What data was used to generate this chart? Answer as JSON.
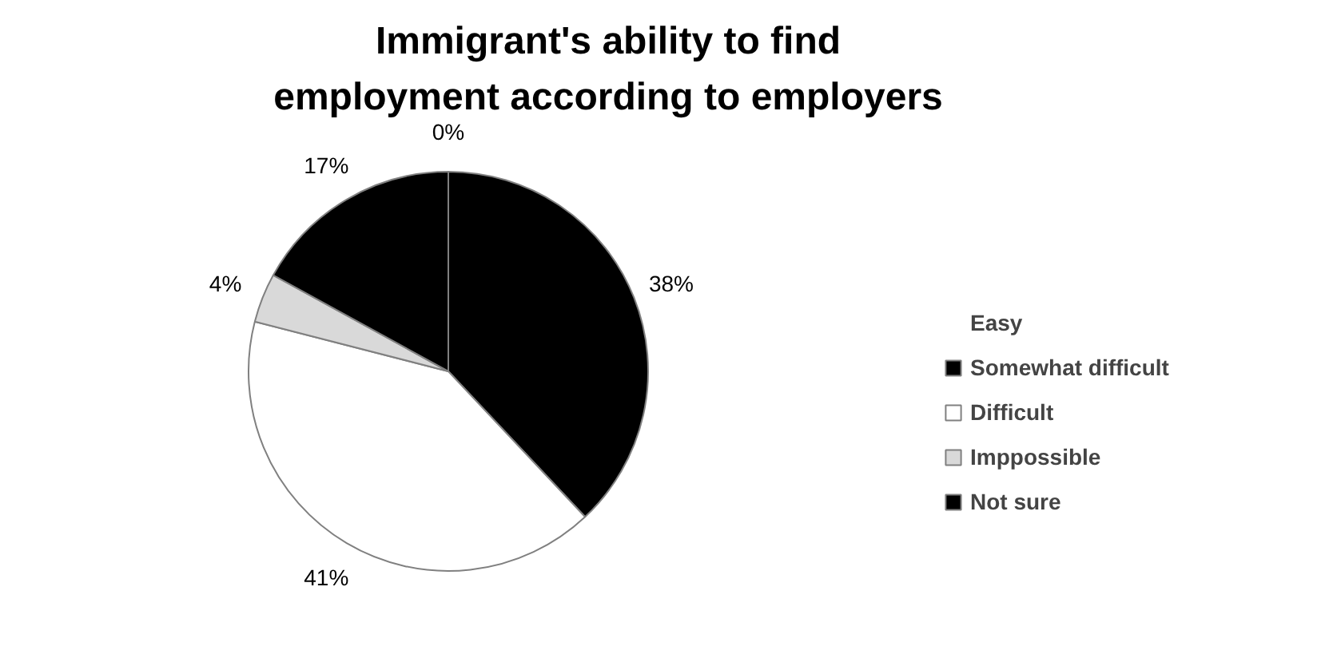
{
  "chart_data": {
    "type": "pie",
    "title": "Immigrant's ability to find employment according to employers",
    "categories": [
      "Easy",
      "Somewhat difficult",
      "Difficult",
      "Imppossible",
      "Not sure"
    ],
    "values": [
      0,
      38,
      41,
      4,
      17
    ],
    "value_labels": [
      "0%",
      "38%",
      "41%",
      "4%",
      "17%"
    ],
    "colors": [
      "#000000",
      "#000000",
      "#ffffff",
      "#d9d9d9",
      "#000000"
    ],
    "legend": "right"
  }
}
